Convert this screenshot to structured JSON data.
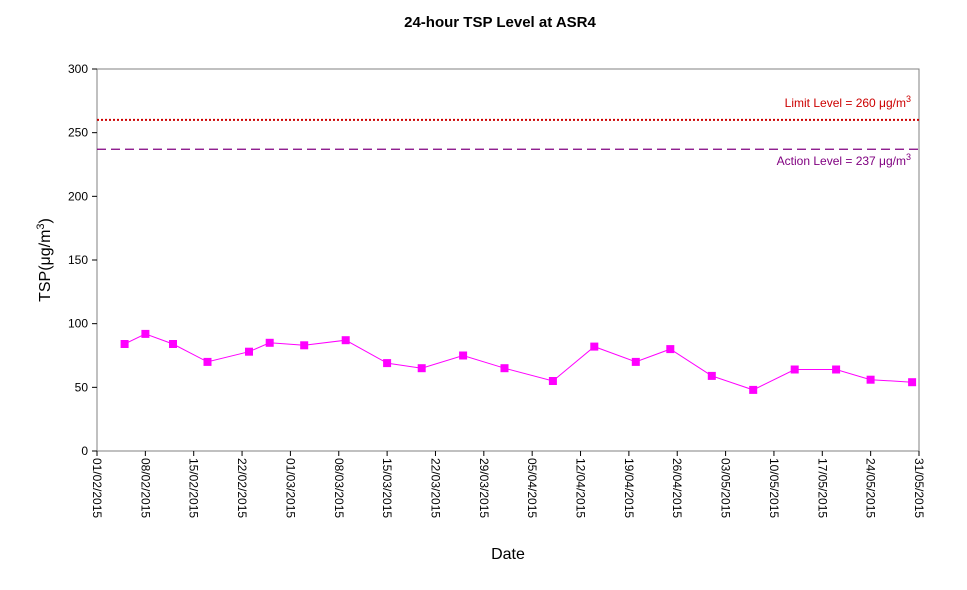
{
  "chart_data": {
    "type": "line",
    "title": "24-hour TSP Level at ASR4",
    "xlabel": "Date",
    "ylabel": "TSP(μg/m³)",
    "ylim": [
      0,
      300
    ],
    "yticks": [
      "0",
      "50",
      "100",
      "150",
      "200",
      "250",
      "300"
    ],
    "xlim": [
      "01/02/2015",
      "31/05/2015"
    ],
    "xticks": [
      "01/02/2015",
      "08/02/2015",
      "15/02/2015",
      "22/02/2015",
      "01/03/2015",
      "08/03/2015",
      "15/03/2015",
      "22/03/2015",
      "29/03/2015",
      "05/04/2015",
      "12/04/2015",
      "19/04/2015",
      "26/04/2015",
      "03/05/2015",
      "10/05/2015",
      "17/05/2015",
      "24/05/2015",
      "31/05/2015"
    ],
    "grid": false,
    "series": [
      {
        "color": "#ff00ff",
        "marker": "square",
        "points": [
          {
            "date": "05/02/2015",
            "value": 84
          },
          {
            "date": "08/02/2015",
            "value": 92
          },
          {
            "date": "12/02/2015",
            "value": 84
          },
          {
            "date": "17/02/2015",
            "value": 70
          },
          {
            "date": "23/02/2015",
            "value": 78
          },
          {
            "date": "26/02/2015",
            "value": 85
          },
          {
            "date": "03/03/2015",
            "value": 83
          },
          {
            "date": "09/03/2015",
            "value": 87
          },
          {
            "date": "15/03/2015",
            "value": 69
          },
          {
            "date": "20/03/2015",
            "value": 65
          },
          {
            "date": "26/03/2015",
            "value": 75
          },
          {
            "date": "01/04/2015",
            "value": 65
          },
          {
            "date": "08/04/2015",
            "value": 55
          },
          {
            "date": "14/04/2015",
            "value": 82
          },
          {
            "date": "20/04/2015",
            "value": 70
          },
          {
            "date": "25/04/2015",
            "value": 80
          },
          {
            "date": "01/05/2015",
            "value": 59
          },
          {
            "date": "07/05/2015",
            "value": 48
          },
          {
            "date": "13/05/2015",
            "value": 64
          },
          {
            "date": "19/05/2015",
            "value": 64
          },
          {
            "date": "24/05/2015",
            "value": 56
          },
          {
            "date": "30/05/2015",
            "value": 54
          }
        ]
      }
    ],
    "reference_lines": [
      {
        "label": "Limit Level  = 260 μg/m",
        "superscript": "3",
        "value": 260,
        "color": "#cc0000",
        "style": "dotted",
        "label_position": "above-right"
      },
      {
        "label": "Action Level  = 237 μg/m",
        "superscript": "3",
        "value": 237,
        "color": "#800080",
        "style": "dashed",
        "label_position": "below-right"
      }
    ]
  }
}
